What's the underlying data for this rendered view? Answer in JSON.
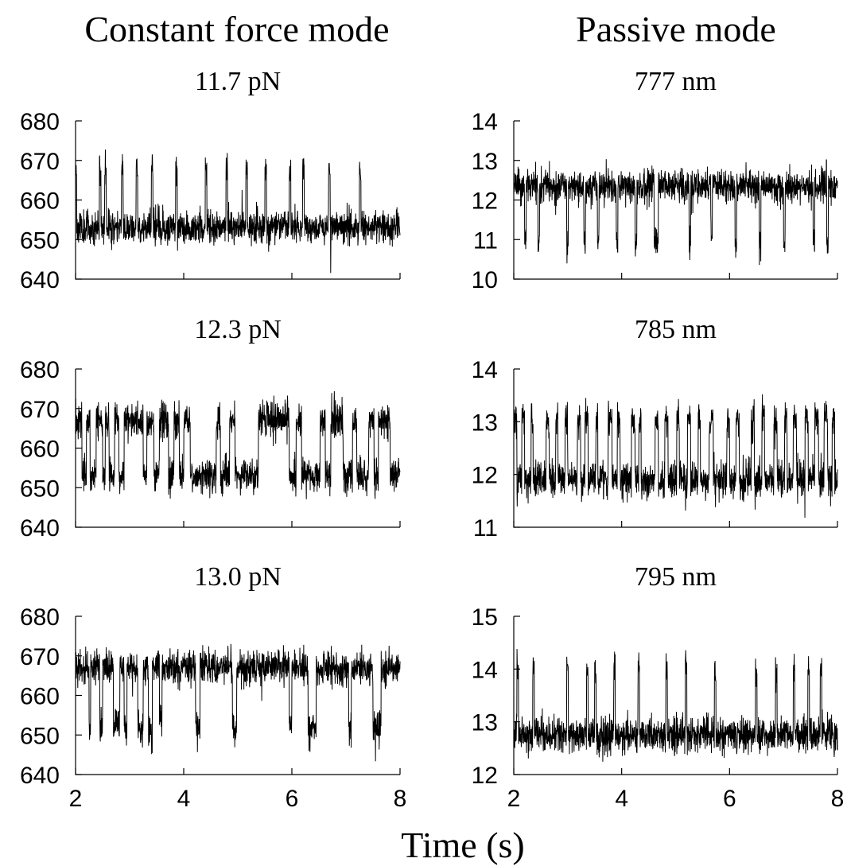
{
  "column_titles": [
    "Constant force mode",
    "Passive mode"
  ],
  "xlabel": "Time (s)",
  "chart_data": [
    {
      "type": "line",
      "title": "11.7 pN",
      "x_range": [
        2,
        8
      ],
      "xticks": [
        2,
        4,
        6,
        8
      ],
      "ylim": [
        640,
        680
      ],
      "yticks": [
        640,
        650,
        660,
        670,
        680
      ],
      "show_x_tick_labels": false,
      "states": [
        653,
        668
      ],
      "noise": 2.0,
      "jumps": [
        [
          2.0,
          1
        ],
        [
          2.02,
          0
        ],
        [
          2.44,
          1
        ],
        [
          2.47,
          0
        ],
        [
          2.54,
          1
        ],
        [
          2.57,
          0
        ],
        [
          2.85,
          1
        ],
        [
          2.88,
          0
        ],
        [
          3.12,
          1
        ],
        [
          3.15,
          0
        ],
        [
          3.4,
          1
        ],
        [
          3.43,
          0
        ],
        [
          3.85,
          1
        ],
        [
          3.88,
          0
        ],
        [
          4.4,
          1
        ],
        [
          4.43,
          0
        ],
        [
          4.78,
          1
        ],
        [
          4.81,
          0
        ],
        [
          5.15,
          1
        ],
        [
          5.18,
          0
        ],
        [
          5.5,
          1
        ],
        [
          5.53,
          0
        ],
        [
          5.95,
          1
        ],
        [
          5.98,
          0
        ],
        [
          6.2,
          1
        ],
        [
          6.23,
          0
        ],
        [
          6.68,
          1
        ],
        [
          6.71,
          0
        ],
        [
          7.25,
          1
        ],
        [
          7.28,
          0
        ]
      ],
      "seed": 11
    },
    {
      "type": "line",
      "title": "777 nm",
      "x_range": [
        2,
        8
      ],
      "xticks": [
        2,
        4,
        6,
        8
      ],
      "ylim": [
        10,
        14
      ],
      "yticks": [
        10,
        11,
        12,
        13,
        14
      ],
      "show_x_tick_labels": false,
      "states": [
        12.35,
        10.9
      ],
      "noise": 0.2,
      "jumps": [
        [
          2.2,
          1
        ],
        [
          2.23,
          0
        ],
        [
          2.45,
          1
        ],
        [
          2.48,
          0
        ],
        [
          2.98,
          1
        ],
        [
          3.01,
          0
        ],
        [
          3.3,
          1
        ],
        [
          3.33,
          0
        ],
        [
          3.55,
          1
        ],
        [
          3.58,
          0
        ],
        [
          3.9,
          1
        ],
        [
          3.93,
          0
        ],
        [
          4.25,
          1
        ],
        [
          4.28,
          0
        ],
        [
          4.6,
          1
        ],
        [
          4.68,
          0
        ],
        [
          5.25,
          1
        ],
        [
          5.28,
          0
        ],
        [
          5.65,
          1
        ],
        [
          5.68,
          0
        ],
        [
          6.1,
          1
        ],
        [
          6.13,
          0
        ],
        [
          6.55,
          1
        ],
        [
          6.58,
          0
        ],
        [
          7.0,
          1
        ],
        [
          7.03,
          0
        ],
        [
          7.55,
          1
        ],
        [
          7.58,
          0
        ],
        [
          7.8,
          1
        ],
        [
          7.83,
          0
        ]
      ],
      "seed": 23
    },
    {
      "type": "line",
      "title": "12.3 pN",
      "x_range": [
        2,
        8
      ],
      "xticks": [
        2,
        4,
        6,
        8
      ],
      "ylim": [
        640,
        680
      ],
      "yticks": [
        640,
        650,
        660,
        670,
        680
      ],
      "show_x_tick_labels": false,
      "states": [
        653,
        667
      ],
      "noise": 2.2,
      "jumps": [
        [
          2.0,
          1
        ],
        [
          2.12,
          0
        ],
        [
          2.2,
          1
        ],
        [
          2.27,
          0
        ],
        [
          2.38,
          1
        ],
        [
          2.5,
          0
        ],
        [
          2.55,
          1
        ],
        [
          2.62,
          0
        ],
        [
          2.72,
          1
        ],
        [
          2.8,
          0
        ],
        [
          2.9,
          1
        ],
        [
          3.25,
          0
        ],
        [
          3.32,
          1
        ],
        [
          3.45,
          0
        ],
        [
          3.55,
          1
        ],
        [
          3.72,
          0
        ],
        [
          3.82,
          1
        ],
        [
          3.92,
          0
        ],
        [
          4.0,
          1
        ],
        [
          4.12,
          0
        ],
        [
          4.6,
          1
        ],
        [
          4.68,
          0
        ],
        [
          4.85,
          1
        ],
        [
          4.95,
          0
        ],
        [
          5.38,
          1
        ],
        [
          5.95,
          0
        ],
        [
          6.08,
          1
        ],
        [
          6.18,
          0
        ],
        [
          6.52,
          1
        ],
        [
          6.62,
          0
        ],
        [
          6.72,
          1
        ],
        [
          6.95,
          0
        ],
        [
          7.12,
          1
        ],
        [
          7.2,
          0
        ],
        [
          7.42,
          1
        ],
        [
          7.52,
          0
        ],
        [
          7.6,
          1
        ],
        [
          7.82,
          0
        ]
      ],
      "seed": 37
    },
    {
      "type": "line",
      "title": "785 nm",
      "x_range": [
        2,
        8
      ],
      "xticks": [
        2,
        4,
        6,
        8
      ],
      "ylim": [
        11,
        14
      ],
      "yticks": [
        11,
        12,
        13,
        14
      ],
      "show_x_tick_labels": false,
      "states": [
        11.9,
        13.05
      ],
      "noise": 0.17,
      "jumps": [
        [
          2.0,
          1
        ],
        [
          2.06,
          0
        ],
        [
          2.15,
          1
        ],
        [
          2.2,
          0
        ],
        [
          2.32,
          1
        ],
        [
          2.36,
          0
        ],
        [
          2.6,
          1
        ],
        [
          2.66,
          0
        ],
        [
          2.78,
          1
        ],
        [
          2.82,
          0
        ],
        [
          2.95,
          1
        ],
        [
          3.0,
          0
        ],
        [
          3.18,
          1
        ],
        [
          3.24,
          0
        ],
        [
          3.32,
          1
        ],
        [
          3.38,
          0
        ],
        [
          3.52,
          1
        ],
        [
          3.56,
          0
        ],
        [
          3.75,
          1
        ],
        [
          3.82,
          0
        ],
        [
          3.92,
          1
        ],
        [
          3.97,
          0
        ],
        [
          4.18,
          1
        ],
        [
          4.25,
          0
        ],
        [
          4.32,
          1
        ],
        [
          4.36,
          0
        ],
        [
          4.62,
          1
        ],
        [
          4.68,
          0
        ],
        [
          4.8,
          1
        ],
        [
          4.86,
          0
        ],
        [
          5.02,
          1
        ],
        [
          5.07,
          0
        ],
        [
          5.22,
          1
        ],
        [
          5.28,
          0
        ],
        [
          5.42,
          1
        ],
        [
          5.46,
          0
        ],
        [
          5.62,
          1
        ],
        [
          5.7,
          0
        ],
        [
          5.95,
          1
        ],
        [
          6.0,
          0
        ],
        [
          6.12,
          1
        ],
        [
          6.18,
          0
        ],
        [
          6.4,
          1
        ],
        [
          6.46,
          0
        ],
        [
          6.6,
          1
        ],
        [
          6.65,
          0
        ],
        [
          6.82,
          1
        ],
        [
          6.88,
          0
        ],
        [
          7.02,
          1
        ],
        [
          7.07,
          0
        ],
        [
          7.18,
          1
        ],
        [
          7.24,
          0
        ],
        [
          7.4,
          1
        ],
        [
          7.46,
          0
        ],
        [
          7.58,
          1
        ],
        [
          7.65,
          0
        ],
        [
          7.75,
          1
        ],
        [
          7.82,
          0
        ],
        [
          7.9,
          1
        ],
        [
          7.95,
          0
        ]
      ],
      "seed": 51
    },
    {
      "type": "line",
      "title": "13.0 pN",
      "x_range": [
        2,
        8
      ],
      "xticks": [
        2,
        4,
        6,
        8
      ],
      "ylim": [
        640,
        680
      ],
      "yticks": [
        640,
        650,
        660,
        670,
        680
      ],
      "show_x_tick_labels": true,
      "states": [
        667,
        652
      ],
      "noise": 2.1,
      "jumps": [
        [
          2.25,
          1
        ],
        [
          2.28,
          0
        ],
        [
          2.45,
          1
        ],
        [
          2.5,
          0
        ],
        [
          2.7,
          1
        ],
        [
          2.82,
          0
        ],
        [
          2.9,
          1
        ],
        [
          2.95,
          0
        ],
        [
          3.15,
          1
        ],
        [
          3.25,
          0
        ],
        [
          3.35,
          1
        ],
        [
          3.42,
          0
        ],
        [
          3.55,
          1
        ],
        [
          3.6,
          0
        ],
        [
          4.22,
          1
        ],
        [
          4.3,
          0
        ],
        [
          4.9,
          1
        ],
        [
          4.98,
          0
        ],
        [
          5.95,
          1
        ],
        [
          6.0,
          0
        ],
        [
          6.3,
          1
        ],
        [
          6.45,
          0
        ],
        [
          7.05,
          1
        ],
        [
          7.1,
          0
        ],
        [
          7.5,
          1
        ],
        [
          7.65,
          0
        ]
      ],
      "seed": 67
    },
    {
      "type": "line",
      "title": "795 nm",
      "x_range": [
        2,
        8
      ],
      "xticks": [
        2,
        4,
        6,
        8
      ],
      "ylim": [
        12,
        15
      ],
      "yticks": [
        12,
        13,
        14,
        15
      ],
      "show_x_tick_labels": true,
      "states": [
        12.75,
        14.0
      ],
      "noise": 0.16,
      "jumps": [
        [
          2.06,
          1
        ],
        [
          2.09,
          0
        ],
        [
          2.35,
          1
        ],
        [
          2.38,
          0
        ],
        [
          2.98,
          1
        ],
        [
          3.01,
          0
        ],
        [
          3.35,
          1
        ],
        [
          3.38,
          0
        ],
        [
          3.5,
          1
        ],
        [
          3.53,
          0
        ],
        [
          3.85,
          1
        ],
        [
          3.88,
          0
        ],
        [
          4.3,
          1
        ],
        [
          4.33,
          0
        ],
        [
          4.82,
          1
        ],
        [
          4.85,
          0
        ],
        [
          5.18,
          1
        ],
        [
          5.21,
          0
        ],
        [
          5.72,
          1
        ],
        [
          5.75,
          0
        ],
        [
          6.48,
          1
        ],
        [
          6.51,
          0
        ],
        [
          6.85,
          1
        ],
        [
          6.88,
          0
        ],
        [
          7.18,
          1
        ],
        [
          7.21,
          0
        ],
        [
          7.45,
          1
        ],
        [
          7.48,
          0
        ],
        [
          7.68,
          1
        ],
        [
          7.71,
          0
        ]
      ],
      "seed": 83
    }
  ]
}
